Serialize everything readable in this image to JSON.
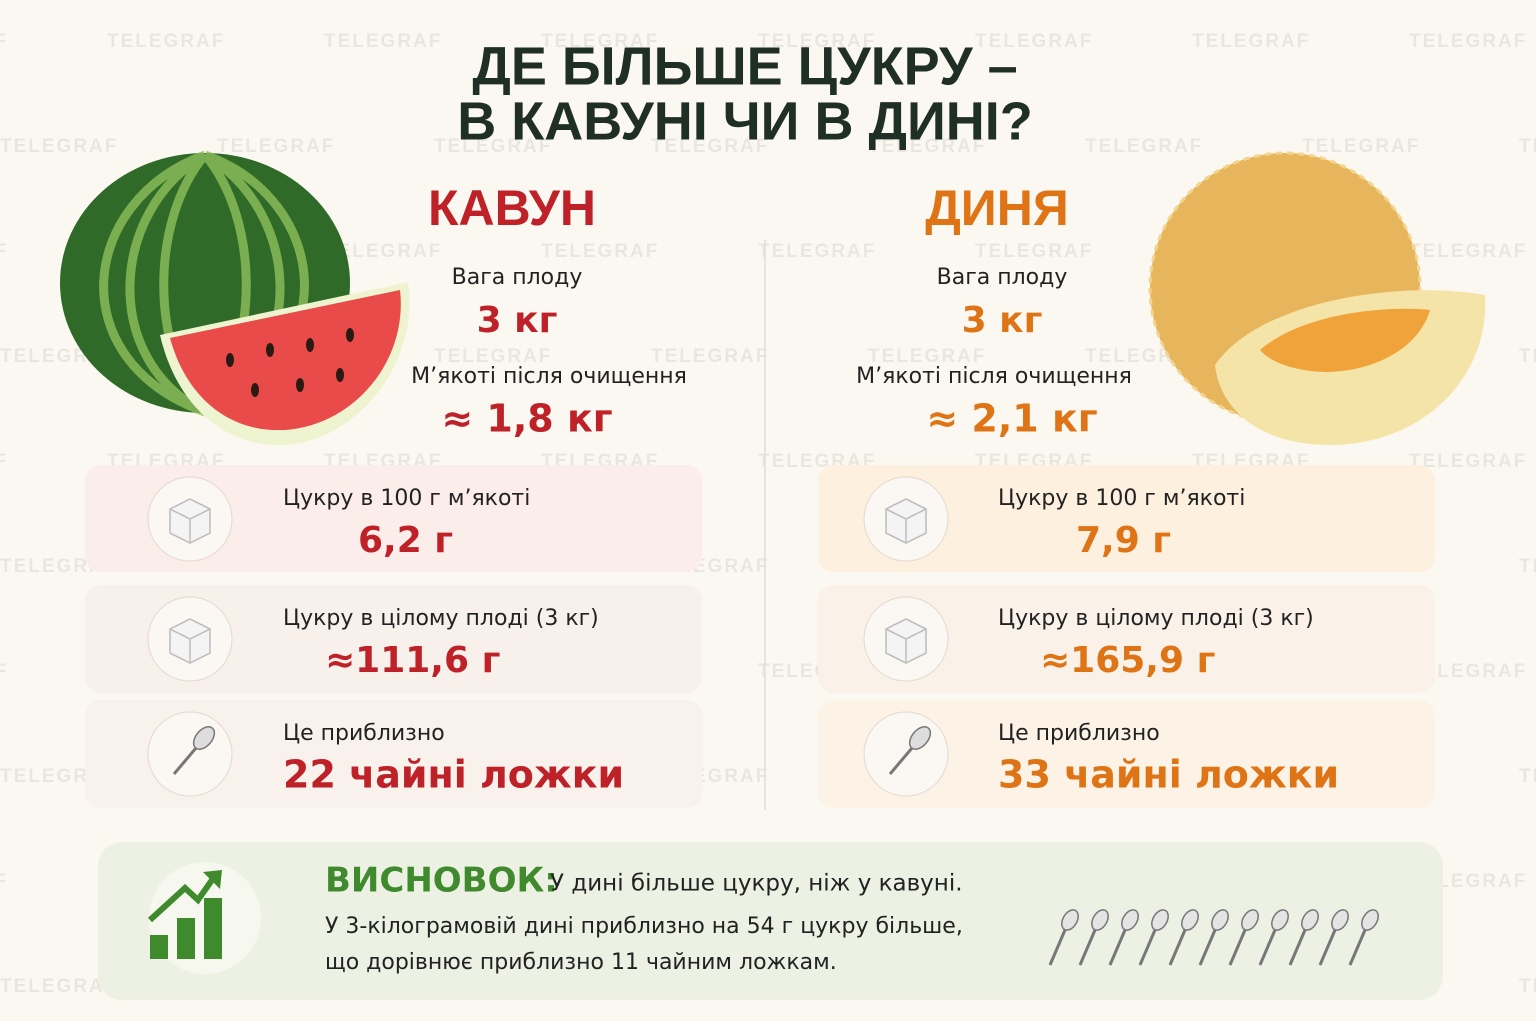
{
  "watermark": "TELEGRAF",
  "title": [
    "ДЕ БІЛЬШЕ ЦУКРУ –",
    "В КАВУНІ ЧИ В ДИНІ?"
  ],
  "columns": [
    {
      "name": "КАВУН",
      "weight_label": "Вага плоду",
      "weight": "3 кг",
      "pulp_label": "М’якоті після очищення",
      "pulp": "≈ 1,8 кг",
      "cards": [
        {
          "label": "Цукру в 100 г м’якоті",
          "value": "6,2 г"
        },
        {
          "label": "Цукру в цілому плоді (3 кг)",
          "value": "≈111,6 г"
        },
        {
          "label": "Це приблизно",
          "value": "22 чайні ложки"
        }
      ]
    },
    {
      "name": "ДИНЯ",
      "weight_label": "Вага плоду",
      "weight": "3 кг",
      "pulp_label": "М’якоті після очищення",
      "pulp": "≈ 2,1 кг",
      "cards": [
        {
          "label": "Цукру в 100 г м’якоті",
          "value": "7,9 г"
        },
        {
          "label": "Цукру в цілому плоді (3 кг)",
          "value": "≈165,9 г"
        },
        {
          "label": "Це приблизно",
          "value": "33 чайні ложки"
        }
      ]
    }
  ],
  "conclusion": {
    "heading": "ВИСНОВОК:",
    "lines": [
      "У дині більше цукру, ніж у кавуні.",
      "У 3-кілограмовій дині приблизно на 54 г цукру більше,",
      "що дорівнює приблизно 11 чайним ложкам."
    ]
  }
}
